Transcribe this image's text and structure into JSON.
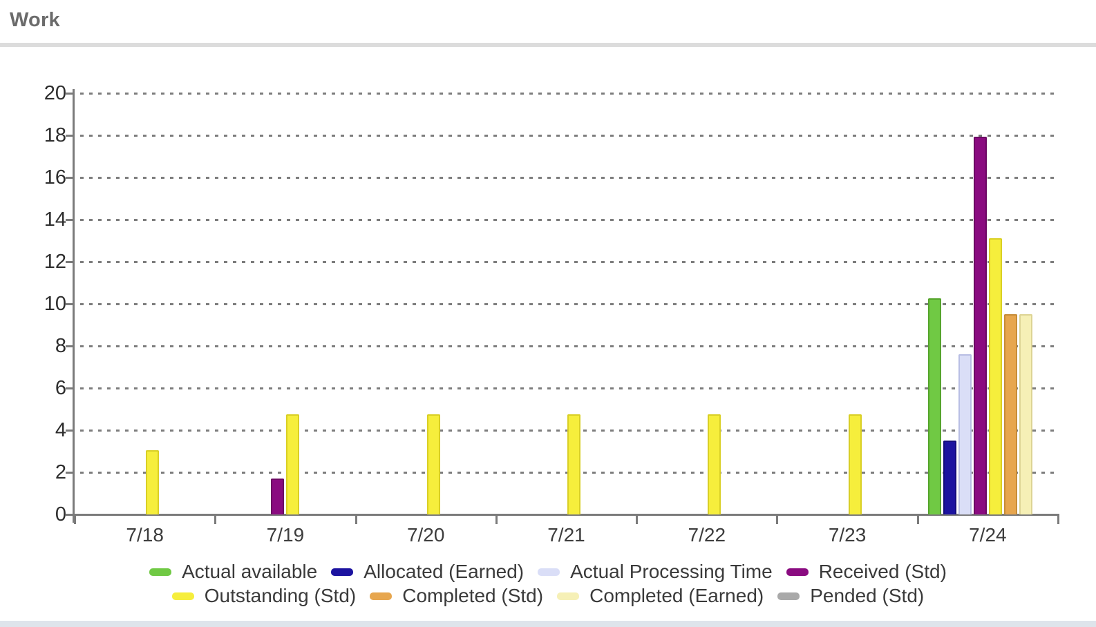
{
  "page": {
    "title": "Work"
  },
  "chart_data": {
    "type": "bar",
    "title": "Work",
    "xlabel": "",
    "ylabel": "",
    "ylim": [
      0,
      20
    ],
    "ytick_step": 2,
    "yticks": [
      0,
      2,
      4,
      6,
      8,
      10,
      12,
      14,
      16,
      18,
      20
    ],
    "grid": "horizontal-dotted",
    "legend_position": "bottom",
    "categories": [
      "7/18",
      "7/19",
      "7/20",
      "7/21",
      "7/22",
      "7/23",
      "7/24"
    ],
    "series": [
      {
        "name": "Actual available",
        "color": "#70c944",
        "border": "#55a42c",
        "values": [
          0,
          0,
          0,
          0,
          0,
          0,
          10.25
        ]
      },
      {
        "name": "Allocated (Earned)",
        "color": "#1c13a0",
        "border": "#140c7c",
        "values": [
          0,
          0,
          0,
          0,
          0,
          0,
          3.5
        ]
      },
      {
        "name": "Actual Processing Time",
        "color": "#dadef7",
        "border": "#b8bee4",
        "values": [
          0,
          0,
          0,
          0,
          0,
          0,
          7.6
        ]
      },
      {
        "name": "Received (Std)",
        "color": "#8a0b80",
        "border": "#6c0863",
        "values": [
          0,
          1.7,
          0,
          0,
          0,
          0,
          17.95
        ]
      },
      {
        "name": "Outstanding (Std)",
        "color": "#f6ee3c",
        "border": "#d9cf25",
        "values": [
          3.05,
          4.75,
          4.75,
          4.75,
          4.75,
          4.75,
          13.1
        ]
      },
      {
        "name": "Completed (Std)",
        "color": "#e7a64e",
        "border": "#c68c38",
        "values": [
          0,
          0,
          0,
          0,
          0,
          0,
          9.5
        ]
      },
      {
        "name": "Completed (Earned)",
        "color": "#f6f0b6",
        "border": "#ddd494",
        "values": [
          0,
          0,
          0,
          0,
          0,
          0,
          9.5
        ]
      },
      {
        "name": "Pended (Std)",
        "color": "#a9a9a9",
        "border": "#949494",
        "values": [
          0,
          0,
          0,
          0,
          0,
          0,
          0
        ]
      }
    ],
    "legend_rows": [
      [
        0,
        1,
        2,
        3
      ],
      [
        4,
        5,
        6,
        7
      ]
    ]
  },
  "colors": {
    "axis": "#7b7b7b",
    "grid": "#7d7d7d",
    "title_text": "#6b6b6b",
    "tick_label": "#2e2e2e",
    "legend_text": "#3a3a3a",
    "divider": "#dcdcdc",
    "bottom_strip": "#dee4eb",
    "background": "#ffffff"
  }
}
